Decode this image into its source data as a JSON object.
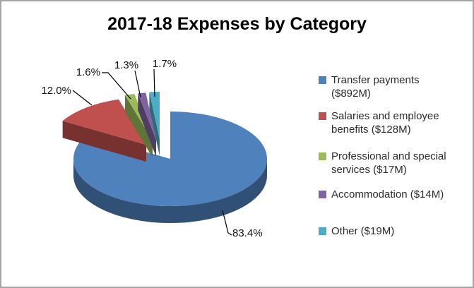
{
  "title": "2017-18 Expenses by Category",
  "chart_data": {
    "type": "pie",
    "style": "3d-exploded",
    "title": "2017-18 Expenses by Category",
    "legend_position": "right",
    "slices": [
      {
        "label": "Transfer payments ($892M)",
        "lines": [
          "Transfer payments",
          "($892M)"
        ],
        "amount": "$892M",
        "percent": 83.4,
        "percent_label": "83.4%",
        "color": "#4F81BD"
      },
      {
        "label": "Salaries and employee benefits ($128M)",
        "lines": [
          "Salaries and employee",
          "benefits ($128M)"
        ],
        "amount": "$128M",
        "percent": 12.0,
        "percent_label": "12.0%",
        "color": "#C0504D"
      },
      {
        "label": "Professional and special services ($17M)",
        "lines": [
          "Professional and special",
          "services ($17M)"
        ],
        "amount": "$17M",
        "percent": 1.6,
        "percent_label": "1.6%",
        "color": "#9BBB59"
      },
      {
        "label": "Accommodation ($14M)",
        "lines": [
          "Accommodation ($14M)"
        ],
        "amount": "$14M",
        "percent": 1.3,
        "percent_label": "1.3%",
        "color": "#8064A2"
      },
      {
        "label": "Other ($19M)",
        "lines": [
          "Other ($19M)"
        ],
        "amount": "$19M",
        "percent": 1.7,
        "percent_label": "1.7%",
        "color": "#4BACC6"
      }
    ]
  }
}
